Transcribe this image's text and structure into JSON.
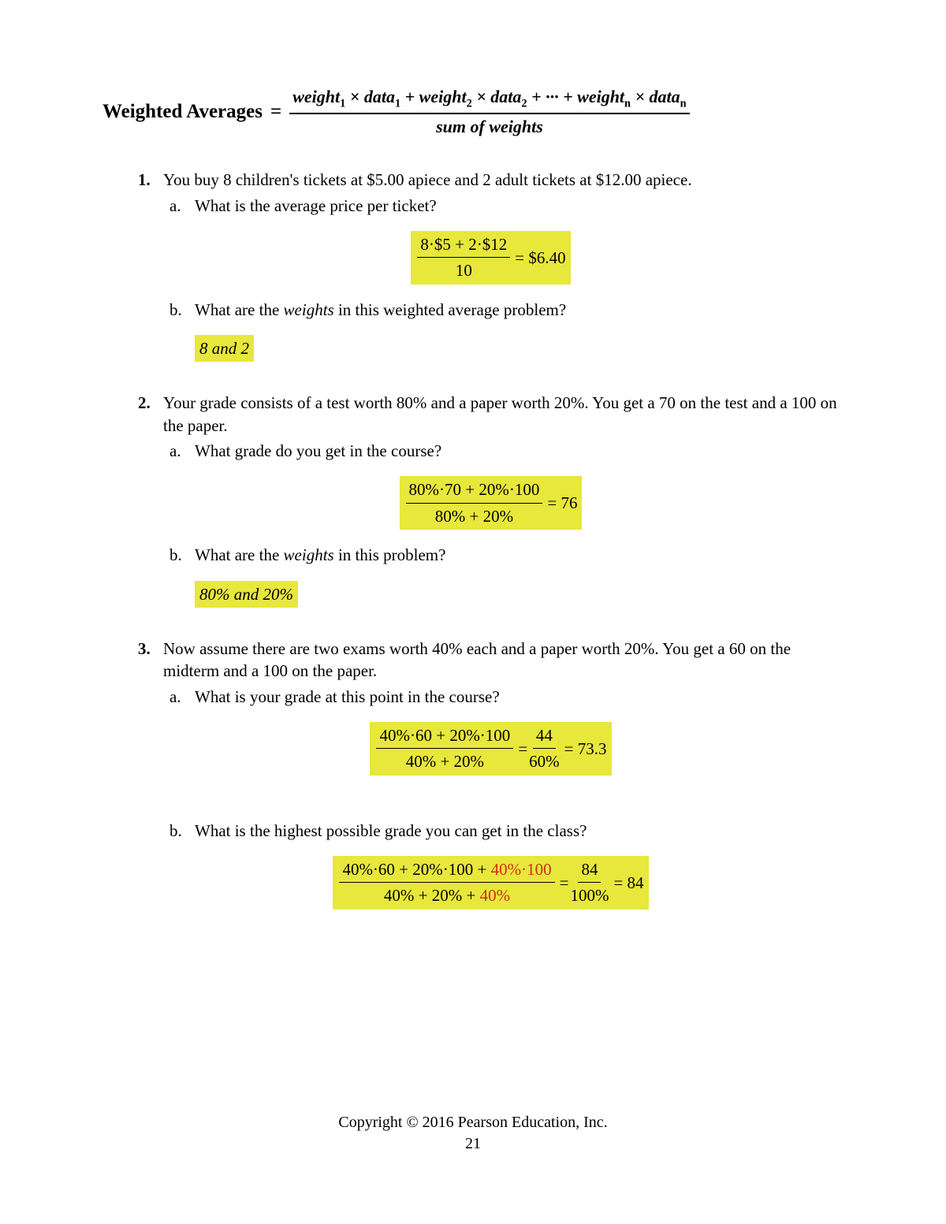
{
  "highlight_color": "#e7e73c",
  "red_color": "#d03018",
  "title": {
    "label": "Weighted Averages",
    "equals": " = ",
    "formula": {
      "numerator_parts": [
        "weight",
        "1",
        " × ",
        "data",
        "1",
        " + ",
        "weight",
        "2",
        " × ",
        "data",
        "2",
        " + ··· + ",
        "weight",
        "n",
        " × ",
        "data",
        "n"
      ],
      "denominator": "sum of weights"
    }
  },
  "problems": [
    {
      "num": "1.",
      "text": "You buy 8 children's tickets at $5.00 apiece and 2 adult tickets at $12.00 apiece.",
      "subs": [
        {
          "letter": "a.",
          "text": "What is the average price per ticket?",
          "answer": {
            "type": "fraction",
            "numer": "8·$5 + 2·$12",
            "denom": "10",
            "tail": " = $6.40"
          }
        },
        {
          "letter": "b.",
          "text_pre": "What are the ",
          "text_em": "weights",
          "text_post": " in this weighted average problem?",
          "answer": {
            "type": "text",
            "value": "8 and 2",
            "italic": true,
            "align": "left"
          }
        }
      ]
    },
    {
      "num": "2.",
      "text": "Your grade consists of a test worth 80% and a paper worth 20%.  You get a 70 on the test and a 100 on the paper.",
      "subs": [
        {
          "letter": "a.",
          "text": "What grade do you get in the course?",
          "answer": {
            "type": "fraction",
            "numer": "80%·70 + 20%·100",
            "denom": "80% + 20%",
            "tail": " = 76"
          }
        },
        {
          "letter": "b.",
          "text_pre": "What are the ",
          "text_em": "weights",
          "text_post": " in this problem?",
          "answer": {
            "type": "text",
            "value": "80% and 20%",
            "italic": true,
            "align": "left"
          }
        }
      ]
    },
    {
      "num": "3.",
      "text": "Now assume there are two exams worth 40% each and a paper worth 20%.  You get a 60 on the midterm and a 100 on the paper.",
      "subs": [
        {
          "letter": "a.",
          "text": "What is your grade at this point in the course?",
          "answer": {
            "type": "double_fraction",
            "numer1": "40%·60 + 20%·100",
            "denom1": "40% + 20%",
            "mid": " = ",
            "numer2": "44",
            "denom2": "60%",
            "tail": " = 73.3"
          }
        },
        {
          "letter": "b.",
          "text": "What is the highest possible grade you can get in the class?",
          "answer": {
            "type": "double_fraction_red",
            "numer1_a": "40%·60 + 20%·100 + ",
            "numer1_red": "40%·100",
            "denom1_a": "40% + 20% + ",
            "denom1_red": "40%",
            "mid": " = ",
            "numer2": "84",
            "denom2": "100%",
            "tail": " = 84"
          }
        }
      ]
    }
  ],
  "footer": {
    "copyright": "Copyright © 2016 Pearson Education, Inc.",
    "page": "21"
  }
}
